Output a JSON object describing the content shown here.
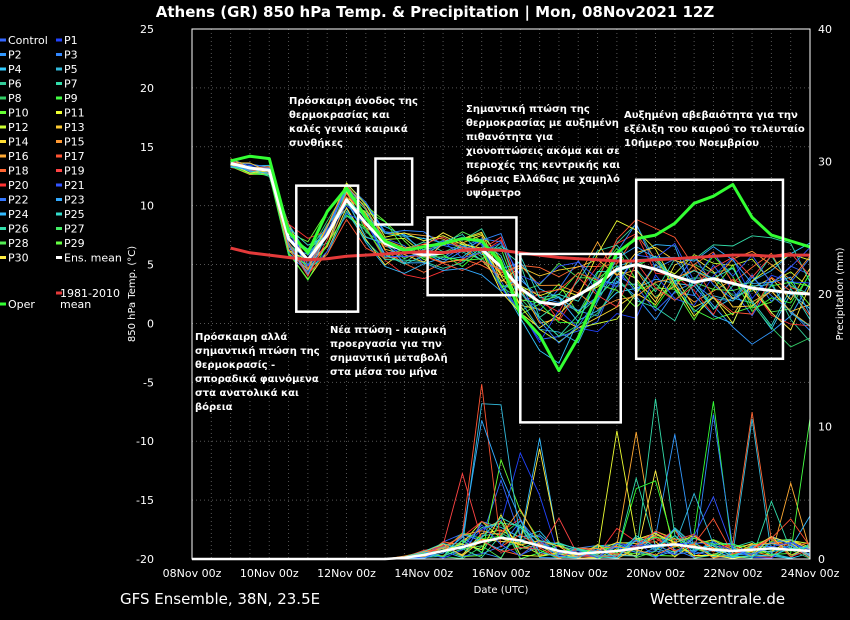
{
  "chart_data": {
    "type": "line",
    "title": "Athens  (GR)  850 hPa Temp. & Precipitation | Mon, 08Nov2021 12Z",
    "xlabel": "Date (UTC)",
    "ylabel": "850 hPa Temp. (°C)",
    "y2label": "Precipitation (mm)",
    "ylim": [
      -20,
      25
    ],
    "y2lim": [
      0,
      40
    ],
    "yticks": [
      "25",
      "20",
      "15",
      "10",
      "5",
      "0",
      "-5",
      "-10",
      "-15",
      "-20"
    ],
    "y2ticks": [
      "40",
      "30",
      "20",
      "10",
      "0"
    ],
    "xticks": [
      "08Nov 00z",
      "10Nov 00z",
      "12Nov 00z",
      "14Nov 00z",
      "16Nov 00z",
      "18Nov 00z",
      "20Nov 00z",
      "22Nov 00z",
      "24Nov 00z"
    ],
    "x_days": [
      0,
      0.5,
      1,
      1.5,
      2,
      2.5,
      3,
      3.5,
      4,
      4.5,
      5,
      5.5,
      6,
      6.5,
      7,
      7.5,
      8,
      8.5,
      9,
      9.5,
      10,
      10.5,
      11,
      11.5,
      12,
      12.5,
      13,
      13.5,
      14,
      14.5,
      15,
      15.5,
      16
    ],
    "series": [
      {
        "name": "Ens. mean",
        "color": "#ffffff",
        "width": 3,
        "values": [
          null,
          null,
          13.6,
          13.2,
          13.0,
          7.2,
          5.4,
          7.5,
          10.5,
          8.5,
          6.8,
          6.2,
          5.8,
          6.0,
          6.2,
          6.3,
          4.8,
          3.0,
          1.8,
          1.6,
          2.4,
          3.4,
          4.6,
          5.0,
          4.6,
          4.0,
          3.5,
          3.8,
          3.4,
          3.0,
          2.8,
          2.6,
          2.5
        ]
      },
      {
        "name": "Oper",
        "color": "#33ff33",
        "width": 3,
        "values": [
          null,
          null,
          13.8,
          14.2,
          14.0,
          7.8,
          6.0,
          9.5,
          11.5,
          9.0,
          7.0,
          6.2,
          6.5,
          6.8,
          7.2,
          7.0,
          5.2,
          0.8,
          -1.0,
          -4.0,
          -1.2,
          2.5,
          6.0,
          7.2,
          7.5,
          8.5,
          10.2,
          10.8,
          11.8,
          9.0,
          7.5,
          7.0,
          6.5
        ]
      },
      {
        "name": "1981-2010 mean",
        "color": "#e43a3a",
        "width": 3,
        "values": [
          null,
          null,
          6.4,
          6.0,
          5.8,
          5.6,
          5.4,
          5.5,
          5.7,
          5.8,
          5.9,
          6.0,
          6.1,
          6.0,
          6.2,
          6.3,
          6.2,
          6.0,
          5.8,
          5.6,
          5.5,
          5.4,
          5.3,
          5.3,
          5.4,
          5.5,
          5.6,
          5.7,
          5.8,
          5.8,
          5.7,
          5.8,
          5.8
        ]
      }
    ],
    "precip_mean": [
      0,
      0,
      0,
      0,
      0,
      0,
      0,
      0,
      0,
      0,
      0,
      0.1,
      0.3,
      0.6,
      0.9,
      1.3,
      1.6,
      1.4,
      1.0,
      0.6,
      0.4,
      0.5,
      0.6,
      0.8,
      1.0,
      1.1,
      0.9,
      0.7,
      0.6,
      0.7,
      0.8,
      0.7,
      0.6
    ],
    "legend_left": [
      [
        "Control",
        "#3366ff"
      ],
      [
        "P2",
        "#3399ff"
      ],
      [
        "P4",
        "#33ccff"
      ],
      [
        "P6",
        "#33cc99"
      ],
      [
        "P8",
        "#33cc66"
      ],
      [
        "P10",
        "#66ff33"
      ],
      [
        "P12",
        "#ccff33"
      ],
      [
        "P14",
        "#ffdd33"
      ],
      [
        "P16",
        "#ffaa33"
      ],
      [
        "P18",
        "#ff6633"
      ],
      [
        "P20",
        "#ff3333"
      ],
      [
        "P22",
        "#3377ff"
      ],
      [
        "P24",
        "#33bbff"
      ],
      [
        "P26",
        "#33ddaa"
      ],
      [
        "P28",
        "#55ee55"
      ],
      [
        "P30",
        "#ffee44"
      ],
      [
        "Oper",
        "#33ff33"
      ]
    ],
    "legend_right": [
      [
        "P1",
        "#2244ff"
      ],
      [
        "P3",
        "#3388ff"
      ],
      [
        "P5",
        "#33bbdd"
      ],
      [
        "P7",
        "#33ddaa"
      ],
      [
        "P9",
        "#44ff44"
      ],
      [
        "P11",
        "#eeff33"
      ],
      [
        "P13",
        "#ffcc33"
      ],
      [
        "P15",
        "#ff9933"
      ],
      [
        "P17",
        "#ff5533"
      ],
      [
        "P19",
        "#ff4444"
      ],
      [
        "P21",
        "#3355ff"
      ],
      [
        "P23",
        "#33aaff"
      ],
      [
        "P25",
        "#33ddcc"
      ],
      [
        "P27",
        "#44ee66"
      ],
      [
        "P29",
        "#66ff44"
      ],
      [
        "Ens. mean",
        "#ffffff"
      ],
      [
        "1981-2010 mean",
        "#e43a3a"
      ]
    ],
    "annotations": [
      {
        "text": [
          "Πρόσκαιρη άνοδος της",
          "θερμοκρασίας και",
          "καλές γενικά καιρικά",
          "συνθήκες"
        ]
      },
      {
        "text": [
          "Σημαντική πτώση της",
          "θερμοκρασίας με αυξημένη",
          "πιθανότητα για",
          "χιονοπτώσεις ακόμα και σε",
          "περιοχές της κεντρικής και",
          "βόρειας Ελλάδας με χαμηλό",
          "υψόμετρο"
        ]
      },
      {
        "text": [
          "Αυξημένη αβεβαιότητα για την",
          "εξέλιξη του καιρού το τελευταίο",
          "10ήμερο του Νοεμβρίου"
        ]
      },
      {
        "text": [
          "Πρόσκαιρη αλλά",
          "σημαντική πτώση της",
          "θερμοκρασίς -",
          "σποραδικά φαινόμενα",
          "στα ανατολικά και",
          "βόρεια"
        ]
      },
      {
        "text": [
          "Νέα πτώση - καιρική",
          "προεργασία για την",
          "σημαντική μεταβολή",
          "στα μέσα του μήνα"
        ]
      }
    ],
    "boxes": [
      {
        "x": [
          2.7,
          4.3
        ],
        "y": [
          1,
          11.7
        ]
      },
      {
        "x": [
          4.75,
          5.7
        ],
        "y": [
          8.4,
          14
        ]
      },
      {
        "x": [
          6.1,
          8.4
        ],
        "y": [
          2.4,
          9
        ]
      },
      {
        "x": [
          8.5,
          11.1
        ],
        "y": [
          -8.4,
          5.9
        ]
      },
      {
        "x": [
          11.5,
          15.3
        ],
        "y": [
          -3,
          12.2
        ]
      }
    ]
  },
  "footer": {
    "left": "GFS Ensemble, 38N, 23.5E",
    "right": "Wetterzentrale.de"
  }
}
